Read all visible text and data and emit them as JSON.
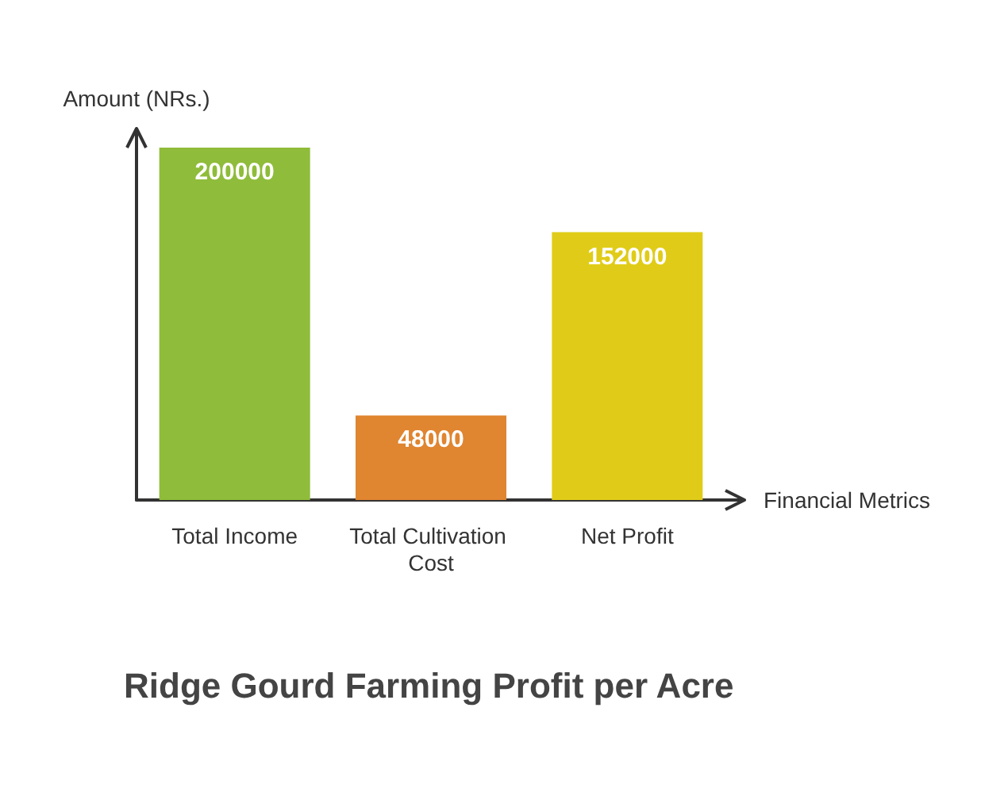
{
  "chart_data": {
    "type": "bar",
    "title": "Ridge Gourd Farming Profit per Acre",
    "xlabel": "Financial Metrics",
    "ylabel": "Amount (NRs.)",
    "categories": [
      "Total Income",
      "Total Cultivation Cost",
      "Net Profit"
    ],
    "values": [
      200000,
      48000,
      152000
    ],
    "colors": [
      "#8fbc3a",
      "#e08530",
      "#e0cc18"
    ],
    "data_labels": true,
    "grid": false,
    "tick_labels": "x"
  }
}
